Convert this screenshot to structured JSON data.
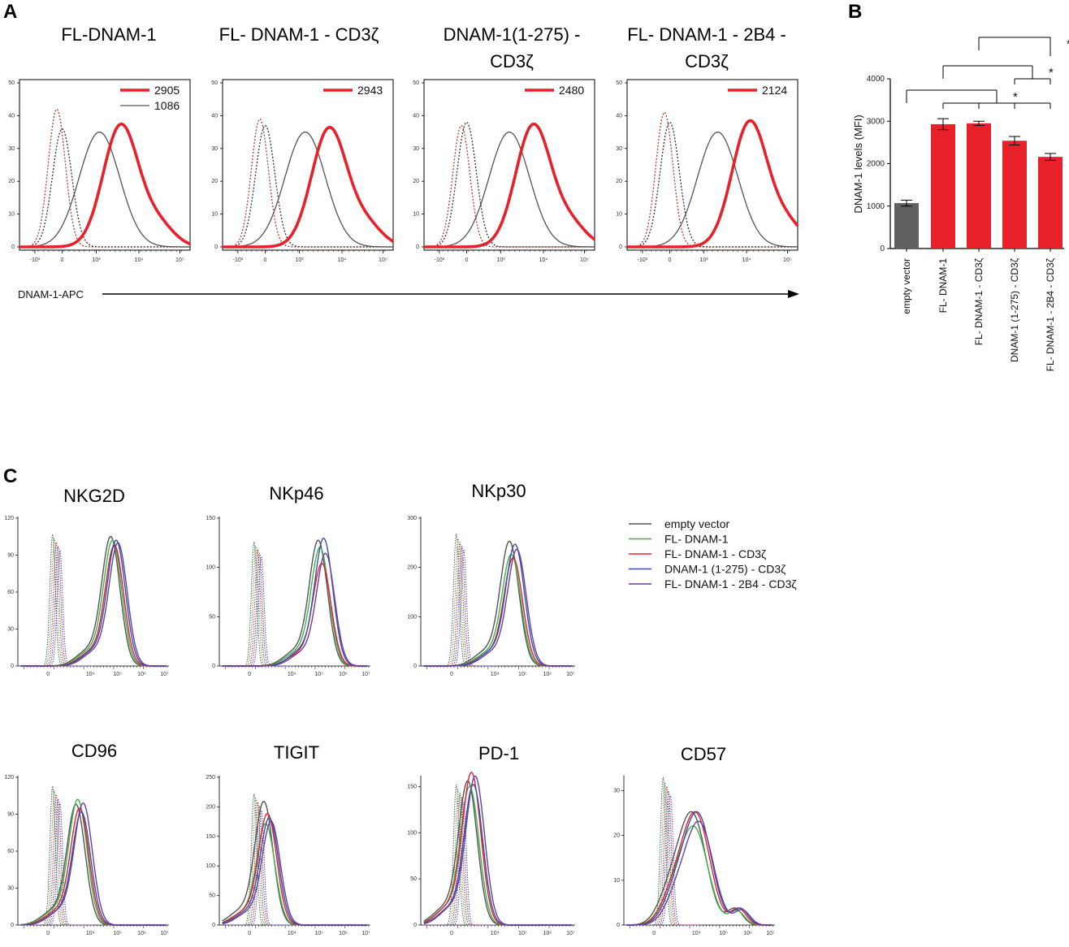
{
  "panel_labels": {
    "a": "A",
    "b": "B",
    "c": "C"
  },
  "colors": {
    "red": "#e8202a",
    "gray_line": "#555555",
    "bar_gray": "#606060",
    "green": "#3cb54a",
    "blue": "#3a4fa8",
    "purple": "#6a3fa0",
    "dotted_red": "#c0392b",
    "dotted_gray": "#333333"
  },
  "chart_data": [
    {
      "id": "A",
      "type": "line",
      "kind": "flow-histograms",
      "x_axis_label": "DNAM-1-APC",
      "x_ticks": [
        "-10³",
        "0",
        "10³",
        "10⁴",
        "10⁵"
      ],
      "y_range": [
        0,
        50
      ],
      "y_ticks": [
        0,
        10,
        20,
        30,
        40,
        50
      ],
      "panels": [
        {
          "title_lines": [
            "FL-DNAM-1"
          ],
          "legend": [
            {
              "label": "2905",
              "color": "red"
            },
            {
              "label": "1086",
              "color": "gray"
            }
          ],
          "series": {
            "red_peak_x": 1.9,
            "red_peak_y": 37,
            "gray_peak_x": 1.5,
            "gray_peak_y": 35,
            "iso_red_peak_y": 42,
            "iso_gray_peak_y": 36
          }
        },
        {
          "title_lines": [
            "FL- DNAM-1 - CD3ζ"
          ],
          "legend": [
            {
              "label": "2943",
              "color": "red"
            }
          ],
          "series": {
            "red_peak_x": 2.0,
            "red_peak_y": 36,
            "gray_peak_x": 1.55,
            "gray_peak_y": 35,
            "iso_red_peak_y": 39,
            "iso_gray_peak_y": 37
          }
        },
        {
          "title_lines": [
            "DNAM-1(1-275) -",
            "CD3ζ"
          ],
          "legend": [
            {
              "label": "2480",
              "color": "red"
            }
          ],
          "series": {
            "red_peak_x": 2.05,
            "red_peak_y": 37,
            "gray_peak_x": 1.6,
            "gray_peak_y": 35,
            "iso_red_peak_y": 37,
            "iso_gray_peak_y": 38
          }
        },
        {
          "title_lines": [
            "FL- DNAM-1 - 2B4 -",
            "CD3ζ"
          ],
          "legend": [
            {
              "label": "2124",
              "color": "red"
            }
          ],
          "series": {
            "red_peak_x": 2.3,
            "red_peak_y": 38,
            "gray_peak_x": 1.7,
            "gray_peak_y": 35,
            "iso_red_peak_y": 41,
            "iso_gray_peak_y": 38
          }
        }
      ]
    },
    {
      "id": "B",
      "type": "bar",
      "ylabel": "DNAM-1 levels (MFI)",
      "ylim": [
        0,
        4000
      ],
      "y_ticks": [
        0,
        1000,
        2000,
        3000,
        4000
      ],
      "categories": [
        "empty vector",
        "FL- DNAM-1",
        "FL- DNAM-1 - CD3ζ",
        "DNAM-1 (1-275) - CD3ζ",
        "FL- DNAM-1 - 2B4 - CD3ζ"
      ],
      "values": [
        1070,
        2930,
        2950,
        2540,
        2160
      ],
      "errors": [
        70,
        130,
        50,
        100,
        80
      ],
      "bar_colors": [
        "bar_gray",
        "red",
        "red",
        "red",
        "red"
      ],
      "significance": [
        {
          "from": 2,
          "to": [
            4
          ],
          "label": "*"
        },
        {
          "from": 1,
          "to": [
            3,
            4
          ],
          "label": "*"
        },
        {
          "from": 0,
          "to": [
            1,
            2,
            3,
            4
          ],
          "label": "*"
        }
      ]
    },
    {
      "id": "C",
      "type": "line",
      "kind": "flow-histograms",
      "x_ticks": [
        "0",
        "10⁴",
        "10⁵",
        "10⁶",
        "10⁷"
      ],
      "legend": [
        {
          "label": "empty vector",
          "color": "gray_line"
        },
        {
          "label": "FL- DNAM-1",
          "color": "green"
        },
        {
          "label": "FL- DNAM-1 - CD3ζ",
          "color": "red"
        },
        {
          "label": "DNAM-1 (1-275) - CD3ζ",
          "color": "blue"
        },
        {
          "label": "FL- DNAM-1 - 2B4 - CD3ζ",
          "color": "purple"
        }
      ],
      "panels": [
        {
          "title": "NKG2D",
          "y_max": 120,
          "y_ticks": [
            0,
            30,
            60,
            90,
            120
          ],
          "iso_peak": 107,
          "peak_x": 0.64,
          "peaks": [
            103,
            100,
            96,
            100,
            98
          ]
        },
        {
          "title": "NKp46",
          "y_max": 150,
          "y_ticks": [
            0,
            50,
            100,
            150
          ],
          "iso_peak": 126,
          "peak_x": 0.68,
          "peaks": [
            125,
            118,
            102,
            127,
            112
          ]
        },
        {
          "title": "NKp30",
          "y_max": 300,
          "y_ticks": [
            0,
            100,
            200,
            300
          ],
          "iso_peak": 268,
          "peak_x": 0.6,
          "peaks": [
            248,
            222,
            215,
            242,
            232
          ]
        },
        {
          "title": "CD96",
          "y_max": 120,
          "y_ticks": [
            0,
            30,
            60,
            90,
            120
          ],
          "iso_peak": 113,
          "peak_x": 0.41,
          "peaks": [
            96,
            100,
            93,
            90,
            97
          ]
        },
        {
          "title": "TIGIT",
          "y_max": 250,
          "y_ticks": [
            0,
            50,
            100,
            150,
            200,
            250
          ],
          "iso_peak": 222,
          "peak_x": 0.32,
          "peaks": [
            205,
            168,
            185,
            178,
            172
          ]
        },
        {
          "title": "PD-1",
          "y_max": 160,
          "y_ticks": [
            0,
            50,
            100,
            150
          ],
          "iso_peak": 152,
          "peak_x": 0.33,
          "peaks": [
            153,
            147,
            162,
            149,
            158
          ]
        },
        {
          "title": "CD57",
          "y_max": 33,
          "y_ticks": [
            0,
            10,
            20,
            30
          ],
          "iso_peak": 33,
          "peak_x": 0.48,
          "peaks": [
            24,
            21,
            24,
            24,
            22
          ]
        }
      ]
    }
  ]
}
